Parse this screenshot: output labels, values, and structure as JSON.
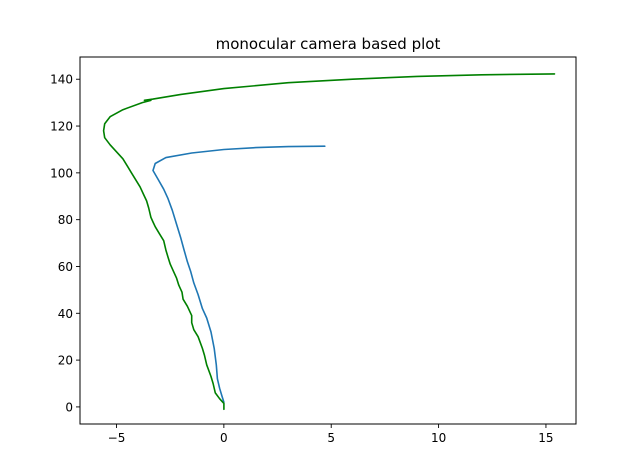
{
  "chart_data": {
    "type": "line",
    "title": "monocular camera based plot",
    "xlabel": "",
    "ylabel": "",
    "xlim": [
      -6.7,
      16.4
    ],
    "ylim": [
      -7.3,
      149.5
    ],
    "xticks": [
      -5,
      0,
      5,
      10,
      15
    ],
    "yticks": [
      0,
      20,
      40,
      60,
      80,
      100,
      120,
      140
    ],
    "grid": false,
    "legend": "none",
    "series": [
      {
        "color": "#1f77b4",
        "points": [
          [
            0.0,
            2.0
          ],
          [
            -0.1,
            5.0
          ],
          [
            -0.2,
            8.0
          ],
          [
            -0.3,
            12.0
          ],
          [
            -0.35,
            18.0
          ],
          [
            -0.45,
            25.0
          ],
          [
            -0.6,
            32.0
          ],
          [
            -0.8,
            38.0
          ],
          [
            -1.0,
            42.0
          ],
          [
            -1.2,
            48.0
          ],
          [
            -1.4,
            53.0
          ],
          [
            -1.55,
            58.0
          ],
          [
            -1.7,
            62.0
          ],
          [
            -1.85,
            67.0
          ],
          [
            -2.0,
            72.0
          ],
          [
            -2.2,
            78.0
          ],
          [
            -2.4,
            84.0
          ],
          [
            -2.6,
            89.0
          ],
          [
            -2.8,
            93.0
          ],
          [
            -3.05,
            97.0
          ],
          [
            -3.3,
            101.0
          ],
          [
            -3.2,
            104.0
          ],
          [
            -2.7,
            106.5
          ],
          [
            -1.5,
            108.5
          ],
          [
            0.0,
            110.0
          ],
          [
            1.5,
            110.8
          ],
          [
            3.0,
            111.2
          ],
          [
            4.7,
            111.4
          ]
        ]
      },
      {
        "color": "#008000",
        "points": [
          [
            0.0,
            -1.0
          ],
          [
            0.0,
            1.5
          ],
          [
            -0.2,
            3.5
          ],
          [
            -0.4,
            6.0
          ],
          [
            -0.5,
            10.0
          ],
          [
            -0.6,
            13.0
          ],
          [
            -0.8,
            18.0
          ],
          [
            -0.9,
            22.0
          ],
          [
            -1.0,
            25.0
          ],
          [
            -1.2,
            30.0
          ],
          [
            -1.4,
            33.0
          ],
          [
            -1.5,
            36.0
          ],
          [
            -1.5,
            39.0
          ],
          [
            -1.7,
            43.0
          ],
          [
            -1.9,
            46.0
          ],
          [
            -1.95,
            49.0
          ],
          [
            -2.1,
            52.0
          ],
          [
            -2.2,
            55.0
          ],
          [
            -2.35,
            58.0
          ],
          [
            -2.5,
            61.0
          ],
          [
            -2.6,
            64.0
          ],
          [
            -2.7,
            67.0
          ],
          [
            -2.8,
            71.0
          ],
          [
            -3.0,
            74.0
          ],
          [
            -3.2,
            77.0
          ],
          [
            -3.3,
            79.0
          ],
          [
            -3.4,
            81.0
          ],
          [
            -3.5,
            85.0
          ],
          [
            -3.6,
            88.0
          ],
          [
            -3.75,
            91.0
          ],
          [
            -3.9,
            94.0
          ],
          [
            -4.1,
            97.0
          ],
          [
            -4.3,
            100.0
          ],
          [
            -4.5,
            103.0
          ],
          [
            -4.7,
            106.0
          ],
          [
            -5.0,
            109.0
          ],
          [
            -5.3,
            112.0
          ],
          [
            -5.55,
            115.0
          ],
          [
            -5.6,
            118.0
          ],
          [
            -5.55,
            121.0
          ],
          [
            -5.3,
            124.0
          ],
          [
            -4.7,
            127.0
          ],
          [
            -3.8,
            130.0
          ],
          [
            -3.4,
            131.0
          ],
          [
            -3.7,
            131.0
          ],
          [
            -3.3,
            131.5
          ],
          [
            -2.0,
            133.5
          ],
          [
            0.0,
            136.0
          ],
          [
            3.0,
            138.5
          ],
          [
            6.0,
            140.0
          ],
          [
            9.0,
            141.2
          ],
          [
            12.0,
            141.9
          ],
          [
            15.4,
            142.3
          ]
        ]
      }
    ]
  }
}
